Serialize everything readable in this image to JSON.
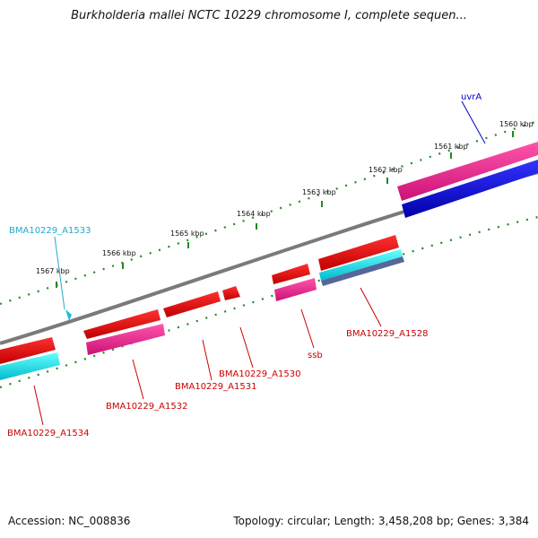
{
  "title": "Burkholderia mallei NCTC 10229 chromosome I, complete sequen...",
  "footer": {
    "accession": "Accession: NC_008836",
    "summary": "Topology: circular; Length: 3,458,208 bp; Genes: 3,384"
  },
  "kbp_labels": [
    "1560 kbp",
    "1561 kbp",
    "1562 kbp",
    "1563 kbp",
    "1564 kbp",
    "1565 kbp",
    "1566 kbp",
    "1567 kbp"
  ],
  "gene_labels": {
    "uvrA": "uvrA",
    "a1528": "BMA10229_A1528",
    "ssb": "ssb",
    "a1530": "BMA10229_A1530",
    "a1531": "BMA10229_A1531",
    "a1532": "BMA10229_A1532",
    "a1533": "BMA10229_A1533",
    "a1534": "BMA10229_A1534"
  },
  "colors": {
    "cds_forward": "#ee0000",
    "cds_reverse": "#00dddd",
    "gene_pink": "#ee1188",
    "gene_blue": "#0000ee",
    "backbone": "#808080",
    "tick": "#228822",
    "label_red": "#cc0000",
    "label_blue": "#0000cc",
    "label_cyan": "#22aacc"
  }
}
